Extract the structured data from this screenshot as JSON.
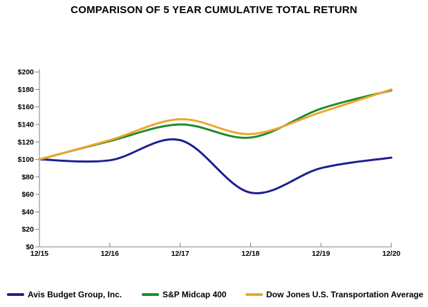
{
  "title": "COMPARISON OF 5 YEAR CUMULATIVE TOTAL RETURN",
  "chart_data": {
    "type": "line",
    "title": "COMPARISON OF 5 YEAR CUMULATIVE TOTAL RETURN",
    "categories": [
      "12/15",
      "12/16",
      "12/17",
      "12/18",
      "12/19",
      "12/20"
    ],
    "series": [
      {
        "name": "Avis Budget Group, Inc.",
        "color": "#1f1f8f",
        "values": [
          100,
          99,
          122,
          62,
          90,
          102
        ]
      },
      {
        "name": "S&P Midcap 400",
        "color": "#1e8b2d",
        "values": [
          100,
          121,
          140,
          125,
          158,
          179
        ]
      },
      {
        "name": "Dow Jones U.S. Transportation Average",
        "color": "#f0a42c",
        "values": [
          100,
          122,
          146,
          129,
          154,
          180
        ]
      }
    ],
    "y_axis": {
      "min": 0,
      "max": 200,
      "step": 20,
      "tick_prefix": "$",
      "tick_labels": [
        "$0",
        "$20",
        "$40",
        "$60",
        "$80",
        "$100",
        "$120",
        "$140",
        "$160",
        "$180",
        "$200"
      ]
    },
    "x_axis": {
      "tick_labels": [
        "12/15",
        "12/16",
        "12/17",
        "12/18",
        "12/19",
        "12/20"
      ]
    },
    "legend": {
      "position": "bottom",
      "entries": [
        "Avis Budget Group, Inc.",
        "S&P Midcap 400",
        "Dow Jones U.S. Transportation Average"
      ]
    },
    "grid": false,
    "axis_color": "#808080",
    "text_color": "#000000",
    "background": "#ffffff"
  }
}
